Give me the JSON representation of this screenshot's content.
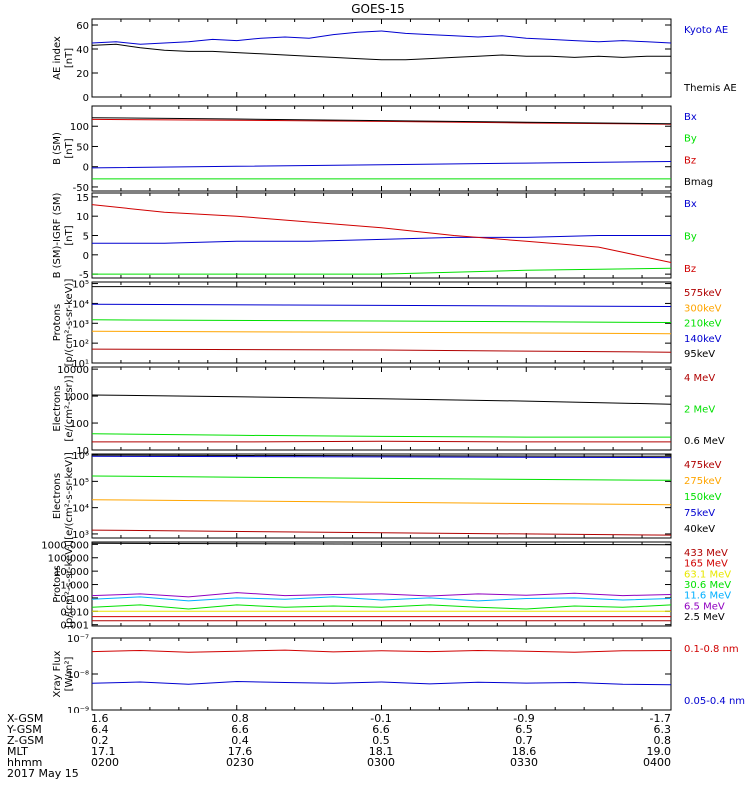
{
  "title": "GOES-15",
  "colors": {
    "black": "#000000",
    "blue": "#0000d0",
    "green": "#00e000",
    "red": "#d00000",
    "orange": "#ffa500",
    "dark_red": "#b00000",
    "yellow": "#e8e800",
    "light_blue": "#00b0ff",
    "purple": "#9000c0"
  },
  "time_axis": {
    "rows": [
      {
        "label": "X-GSM",
        "values": [
          "1.6",
          "0.8",
          "-0.1",
          "-0.9",
          "-1.7"
        ]
      },
      {
        "label": "Y-GSM",
        "values": [
          "6.4",
          "6.6",
          "6.6",
          "6.5",
          "6.3"
        ]
      },
      {
        "label": "Z-GSM",
        "values": [
          "0.2",
          "0.4",
          "0.5",
          "0.7",
          "0.8"
        ]
      },
      {
        "label": "MLT",
        "values": [
          "17.1",
          "17.6",
          "18.1",
          "18.6",
          "19.0"
        ]
      },
      {
        "label": "hhmm",
        "values": [
          "0200",
          "0230",
          "0300",
          "0330",
          "0400"
        ]
      }
    ],
    "date": "2017 May 15",
    "range_minutes": [
      0,
      120
    ]
  },
  "chart_data": [
    {
      "type": "line",
      "ylabel": [
        "AE index",
        "[nT]"
      ],
      "yscale": "linear",
      "ylim": [
        0,
        65
      ],
      "yticks": [
        0,
        20,
        40,
        60
      ],
      "ytick_labels": [
        "0",
        "20",
        "40",
        "60"
      ],
      "series": [
        {
          "name": "Kyoto AE",
          "color": "blue",
          "x": [
            0,
            5,
            10,
            15,
            20,
            25,
            30,
            35,
            40,
            45,
            50,
            55,
            60,
            65,
            70,
            75,
            80,
            85,
            90,
            95,
            100,
            105,
            110,
            115,
            120
          ],
          "y": [
            45,
            46,
            44,
            45,
            46,
            48,
            47,
            49,
            50,
            49,
            52,
            54,
            55,
            53,
            52,
            51,
            50,
            51,
            49,
            48,
            47,
            46,
            47,
            46,
            45
          ]
        },
        {
          "name": "Themis AE",
          "color": "black",
          "x": [
            0,
            5,
            10,
            15,
            20,
            25,
            30,
            35,
            40,
            45,
            50,
            55,
            60,
            65,
            70,
            75,
            80,
            85,
            90,
            95,
            100,
            105,
            110,
            115,
            120
          ],
          "y": [
            43,
            44,
            41,
            39,
            38,
            38,
            37,
            36,
            35,
            34,
            33,
            32,
            31,
            31,
            32,
            33,
            34,
            35,
            34,
            34,
            33,
            34,
            33,
            34,
            34
          ]
        }
      ]
    },
    {
      "type": "line",
      "ylabel": [
        "B (SM)",
        "[nT]"
      ],
      "yscale": "linear",
      "ylim": [
        -60,
        150
      ],
      "yticks": [
        -50,
        0,
        50,
        100
      ],
      "ytick_labels": [
        "-50",
        "0",
        "50",
        "100"
      ],
      "series": [
        {
          "name": "Bx",
          "color": "blue",
          "x": [
            0,
            30,
            60,
            90,
            120
          ],
          "y": [
            -3,
            1,
            5,
            9,
            13
          ]
        },
        {
          "name": "By",
          "color": "green",
          "x": [
            0,
            30,
            60,
            90,
            120
          ],
          "y": [
            -30,
            -30,
            -30,
            -30,
            -30
          ]
        },
        {
          "name": "Bz",
          "color": "red",
          "x": [
            0,
            30,
            60,
            90,
            120
          ],
          "y": [
            117,
            115,
            112,
            108,
            105
          ]
        },
        {
          "name": "Bmag",
          "color": "black",
          "x": [
            0,
            30,
            60,
            90,
            120
          ],
          "y": [
            121,
            118,
            114,
            110,
            106
          ]
        }
      ]
    },
    {
      "type": "line",
      "ylabel": [
        "B (SM)-IGRF (SM)",
        "[nT]"
      ],
      "yscale": "linear",
      "ylim": [
        -6,
        16
      ],
      "yticks": [
        -5,
        0,
        5,
        10,
        15
      ],
      "ytick_labels": [
        "-5",
        "0",
        "5",
        "10",
        "15"
      ],
      "series": [
        {
          "name": "Bx",
          "color": "blue",
          "x": [
            0,
            15,
            30,
            45,
            60,
            75,
            90,
            105,
            120
          ],
          "y": [
            3,
            3,
            3.5,
            3.5,
            4,
            4.5,
            4.5,
            5,
            5
          ]
        },
        {
          "name": "By",
          "color": "green",
          "x": [
            0,
            30,
            60,
            90,
            120
          ],
          "y": [
            -5,
            -5,
            -5,
            -4,
            -3.5
          ]
        },
        {
          "name": "Bz",
          "color": "red",
          "x": [
            0,
            15,
            30,
            45,
            60,
            75,
            90,
            105,
            120
          ],
          "y": [
            13,
            11,
            10,
            8.5,
            7,
            5,
            3.5,
            2,
            -2
          ]
        }
      ]
    },
    {
      "type": "line",
      "ylabel": [
        "Protons",
        "[p/(cm²-s-sr-keV)]"
      ],
      "yscale": "log",
      "ylim": [
        10,
        120000
      ],
      "yticks": [
        10,
        100,
        1000,
        10000,
        100000
      ],
      "ytick_labels": [
        "10¹",
        "10²",
        "10³",
        "10⁴",
        "10⁵"
      ],
      "series": [
        {
          "name": "575keV",
          "color": "dark_red",
          "x": [
            0,
            60,
            120
          ],
          "y": [
            50,
            45,
            35
          ]
        },
        {
          "name": "300keV",
          "color": "orange",
          "x": [
            0,
            60,
            120
          ],
          "y": [
            400,
            350,
            300
          ]
        },
        {
          "name": "210keV",
          "color": "green",
          "x": [
            0,
            60,
            120
          ],
          "y": [
            1500,
            1300,
            1100
          ]
        },
        {
          "name": "140keV",
          "color": "blue",
          "x": [
            0,
            60,
            120
          ],
          "y": [
            9000,
            8000,
            7000
          ]
        },
        {
          "name": "95keV",
          "color": "black",
          "x": [
            0,
            60,
            120
          ],
          "y": [
            70000,
            65000,
            60000
          ]
        }
      ]
    },
    {
      "type": "line",
      "ylabel": [
        "Electrons",
        "[e/(cm²-s-sr)]"
      ],
      "yscale": "log",
      "ylim": [
        10,
        12000
      ],
      "yticks": [
        10,
        100,
        1000,
        10000
      ],
      "ytick_labels": [
        "10",
        "100",
        "1000",
        "10000"
      ],
      "series": [
        {
          "name": "4 MeV",
          "color": "dark_red",
          "x": [
            0,
            30,
            60,
            90,
            120
          ],
          "y": [
            20,
            20,
            21,
            20,
            20
          ]
        },
        {
          "name": "2 MeV",
          "color": "green",
          "x": [
            0,
            30,
            60,
            90,
            120
          ],
          "y": [
            40,
            35,
            32,
            30,
            30
          ]
        },
        {
          "name": "0.6 MeV",
          "color": "black",
          "x": [
            0,
            30,
            60,
            90,
            120
          ],
          "y": [
            1100,
            950,
            800,
            650,
            500
          ]
        }
      ]
    },
    {
      "type": "line",
      "ylabel": [
        "Electrons",
        "[e/(cm²-s-sr-keV)]"
      ],
      "yscale": "log",
      "ylim": [
        700,
        1100000
      ],
      "yticks": [
        1000,
        10000,
        100000,
        1000000
      ],
      "ytick_labels": [
        "10³",
        "10⁴",
        "10⁵",
        "10⁶"
      ],
      "series": [
        {
          "name": "475keV",
          "color": "dark_red",
          "x": [
            0,
            60,
            120
          ],
          "y": [
            1400,
            1100,
            900
          ]
        },
        {
          "name": "275keV",
          "color": "orange",
          "x": [
            0,
            60,
            120
          ],
          "y": [
            20000,
            16000,
            13000
          ]
        },
        {
          "name": "150keV",
          "color": "green",
          "x": [
            0,
            60,
            120
          ],
          "y": [
            160000,
            130000,
            110000
          ]
        },
        {
          "name": "75keV",
          "color": "blue",
          "x": [
            0,
            60,
            120
          ],
          "y": [
            900000,
            850000,
            800000
          ]
        },
        {
          "name": "40keV",
          "color": "black",
          "x": [
            0,
            60,
            120
          ],
          "y": [
            1000000,
            950000,
            900000
          ]
        }
      ]
    },
    {
      "type": "line",
      "ylabel": [
        "Protons",
        "[p/(cm²-s-sr-keV)]"
      ],
      "yscale": "log",
      "ylim": [
        0.0008,
        1500
      ],
      "yticks": [
        0.001,
        0.01,
        0.1,
        1,
        10,
        100,
        1000
      ],
      "ytick_labels": [
        "0.001",
        "0.010",
        "0.100",
        "1.000",
        "10.000",
        "100.000",
        "1000.000"
      ],
      "series": [
        {
          "name": "433 MeV",
          "color": "dark_red",
          "x": [
            0,
            60,
            120
          ],
          "y": [
            0.002,
            0.002,
            0.002
          ]
        },
        {
          "name": "165 MeV",
          "color": "red",
          "x": [
            0,
            60,
            120
          ],
          "y": [
            0.004,
            0.004,
            0.004
          ]
        },
        {
          "name": "63.1 MeV",
          "color": "yellow",
          "x": [
            0,
            60,
            120
          ],
          "y": [
            0.01,
            0.01,
            0.01
          ]
        },
        {
          "name": "30.6 MeV",
          "color": "green",
          "x": [
            0,
            10,
            20,
            30,
            40,
            50,
            60,
            70,
            80,
            90,
            100,
            110,
            120
          ],
          "y": [
            0.02,
            0.03,
            0.015,
            0.03,
            0.02,
            0.025,
            0.02,
            0.03,
            0.02,
            0.015,
            0.025,
            0.02,
            0.03
          ]
        },
        {
          "name": "11.6 MeV",
          "color": "light_blue",
          "x": [
            0,
            10,
            20,
            30,
            40,
            50,
            60,
            70,
            80,
            90,
            100,
            110,
            120
          ],
          "y": [
            0.08,
            0.12,
            0.06,
            0.1,
            0.08,
            0.12,
            0.07,
            0.1,
            0.06,
            0.09,
            0.1,
            0.07,
            0.09
          ]
        },
        {
          "name": "6.5 MeV",
          "color": "purple",
          "x": [
            0,
            10,
            20,
            30,
            40,
            50,
            60,
            70,
            80,
            90,
            100,
            110,
            120
          ],
          "y": [
            0.15,
            0.2,
            0.12,
            0.25,
            0.15,
            0.18,
            0.2,
            0.14,
            0.2,
            0.16,
            0.22,
            0.15,
            0.18
          ]
        },
        {
          "name": "2.5 MeV",
          "color": "black",
          "x": [
            0,
            60,
            120
          ],
          "y": [
            1200,
            1050,
            950
          ]
        }
      ]
    },
    {
      "type": "line",
      "ylabel": [
        "Xray Flux",
        "[W/m²]"
      ],
      "yscale": "log",
      "ylim": [
        1e-09,
        1e-07
      ],
      "yticks": [
        1e-09,
        1e-08,
        1e-07
      ],
      "ytick_labels": [
        "10⁻⁹",
        "10⁻⁸",
        "10⁻⁷"
      ],
      "series": [
        {
          "name": "0.1-0.8 nm",
          "color": "red",
          "x": [
            0,
            10,
            20,
            30,
            40,
            50,
            60,
            70,
            80,
            90,
            100,
            110,
            120
          ],
          "y": [
            4.2e-08,
            4.5e-08,
            4e-08,
            4.3e-08,
            4.6e-08,
            4.1e-08,
            4.4e-08,
            4.2e-08,
            4.5e-08,
            4.3e-08,
            4e-08,
            4.4e-08,
            4.5e-08
          ]
        },
        {
          "name": "0.05-0.4 nm",
          "color": "blue",
          "x": [
            0,
            10,
            20,
            30,
            40,
            50,
            60,
            70,
            80,
            90,
            100,
            110,
            120
          ],
          "y": [
            5.5e-09,
            6e-09,
            5.2e-09,
            6.2e-09,
            5.8e-09,
            5.5e-09,
            6e-09,
            5.3e-09,
            5.9e-09,
            5.6e-09,
            5.8e-09,
            5.2e-09,
            5e-09
          ]
        }
      ]
    }
  ]
}
